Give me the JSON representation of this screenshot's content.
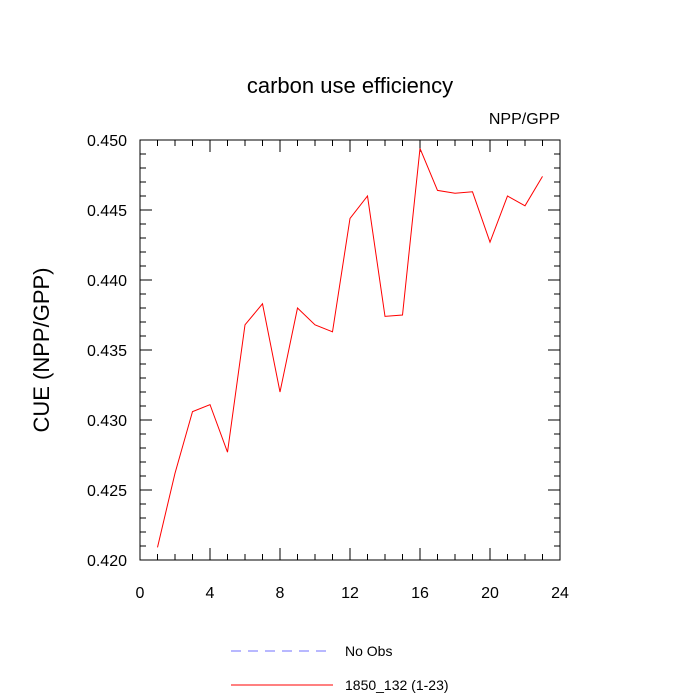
{
  "chart_data": {
    "type": "line",
    "title": "carbon use efficiency",
    "subtitle": "NPP/GPP",
    "xlabel": "",
    "ylabel": "CUE  (NPP/GPP)",
    "xlim": [
      0,
      24
    ],
    "ylim": [
      0.42,
      0.45
    ],
    "x_ticks": [
      0,
      4,
      8,
      12,
      16,
      20,
      24
    ],
    "x_tick_labels": [
      "0",
      "4",
      "8",
      "12",
      "16",
      "20",
      "24"
    ],
    "y_ticks": [
      0.42,
      0.425,
      0.43,
      0.435,
      0.44,
      0.445,
      0.45
    ],
    "y_tick_labels": [
      "0.420",
      "0.425",
      "0.430",
      "0.435",
      "0.440",
      "0.445",
      "0.450"
    ],
    "grid": false,
    "legend_position": "bottom",
    "series": [
      {
        "name": "1850_132 (1-23)",
        "color": "#ff0000",
        "dash": "solid",
        "x": [
          1,
          2,
          3,
          4,
          5,
          6,
          7,
          8,
          9,
          10,
          11,
          12,
          13,
          14,
          15,
          16,
          17,
          18,
          19,
          20,
          21,
          22,
          23
        ],
        "y": [
          0.4209,
          0.4262,
          0.4306,
          0.4311,
          0.4277,
          0.4368,
          0.4383,
          0.432,
          0.438,
          0.4368,
          0.4363,
          0.4444,
          0.446,
          0.4374,
          0.4375,
          0.4494,
          0.4464,
          0.4462,
          0.4463,
          0.4427,
          0.446,
          0.4453,
          0.4474
        ]
      }
    ],
    "legend": [
      {
        "label": "No Obs",
        "color": "#7070ff",
        "dash": "dashed"
      },
      {
        "label": "1850_132 (1-23)",
        "color": "#ff0000",
        "dash": "solid"
      }
    ]
  }
}
